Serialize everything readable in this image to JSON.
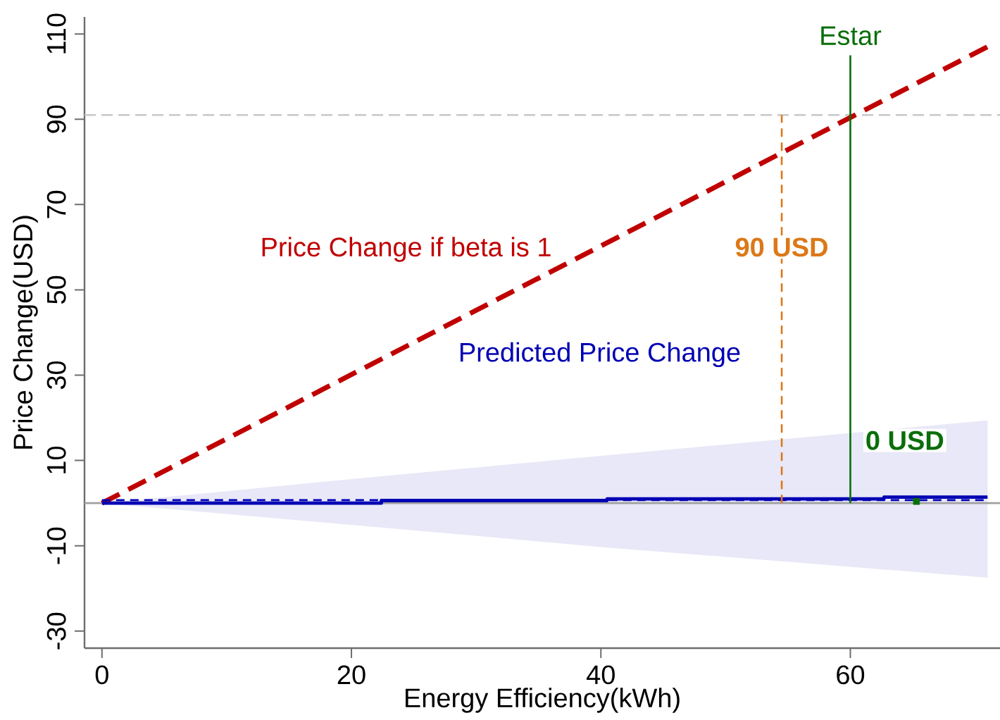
{
  "chart_data": {
    "type": "line",
    "xlabel": "Energy Efficiency(kWh)",
    "ylabel": "Price Change(USD)",
    "xlim": [
      -1.4,
      72
    ],
    "ylim": [
      -34,
      114
    ],
    "xticks": [
      0,
      20,
      40,
      60
    ],
    "yticks": [
      -30,
      -10,
      10,
      30,
      50,
      70,
      90,
      110
    ],
    "grid": false,
    "legend": false,
    "series": [
      {
        "name": "Price Change if beta is 1",
        "color": "#c00000",
        "x": [
          0,
          71
        ],
        "values": [
          0,
          107
        ],
        "line_style": "dashed"
      },
      {
        "name": "Predicted Price Change",
        "color": "#0000b4",
        "x": [
          0,
          22.4,
          22.4,
          40.5,
          40.5,
          62.7,
          62.7,
          71
        ],
        "values": [
          0,
          0,
          0.6,
          0.6,
          1,
          1,
          1.4,
          1.4
        ],
        "lower": [
          0,
          -5.7,
          -5.7,
          -10.4,
          -10.4,
          null,
          null,
          -17.5
        ],
        "upper": [
          0,
          6.3,
          6.3,
          11.2,
          11.2,
          null,
          null,
          19.4
        ],
        "line_style": "solid"
      },
      {
        "color": "#0000b4",
        "x": [
          0,
          71
        ],
        "values": [
          0.7,
          0.7
        ],
        "line_style": "dashed"
      },
      {
        "color": "#dc7818",
        "x": [
          54.5,
          54.5
        ],
        "values": [
          0,
          91
        ],
        "line_style": "dashed"
      },
      {
        "name": "Estar",
        "color": "#0a6e0a",
        "x": [
          60,
          60
        ],
        "values": [
          0,
          105
        ],
        "line_style": "solid"
      },
      {
        "type": "scatter",
        "color": "#0a6e0a",
        "x": [
          65.3
        ],
        "values": [
          0.4
        ],
        "marker": "square"
      }
    ],
    "ref_lines": [
      {
        "axis": "y",
        "value": 0,
        "color": "#a0a0a0",
        "line_style": "solid"
      },
      {
        "axis": "y",
        "value": 91,
        "color": "#c8c8c8",
        "line_style": "dashed"
      }
    ],
    "annotations": [
      {
        "text": "90 USD",
        "x": 54.5,
        "y": 60
      },
      "0 USD"
    ]
  }
}
